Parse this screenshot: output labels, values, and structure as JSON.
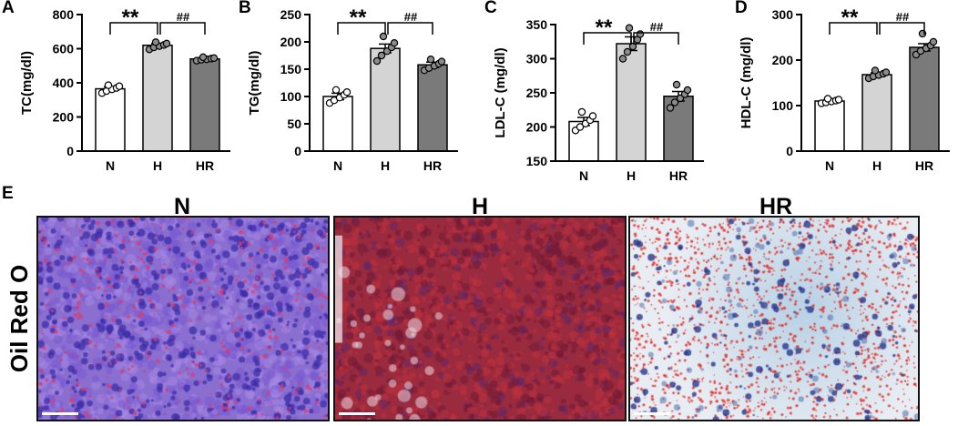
{
  "chart_data": [
    {
      "panel": "A",
      "type": "bar",
      "categories": [
        "N",
        "H",
        "HR"
      ],
      "values": [
        365,
        620,
        540
      ],
      "errors": [
        12,
        10,
        6
      ],
      "points": [
        [
          340,
          352,
          362,
          370,
          380,
          386
        ],
        [
          596,
          608,
          615,
          622,
          630,
          638
        ],
        [
          530,
          535,
          538,
          542,
          545,
          550
        ]
      ],
      "bar_colors": [
        "#ffffff",
        "#d4d4d4",
        "#7a7a7a"
      ],
      "ylabel": "TC(mg/dl)",
      "ylim": [
        0,
        800
      ],
      "yticks": [
        0,
        200,
        400,
        600,
        800
      ],
      "sig": [
        {
          "text": "**",
          "from": 0,
          "to": 1
        },
        {
          "text": "##",
          "from": 1,
          "to": 2
        }
      ]
    },
    {
      "panel": "B",
      "type": "bar",
      "categories": [
        "N",
        "H",
        "HR"
      ],
      "values": [
        100,
        188,
        158
      ],
      "errors": [
        6,
        8,
        5
      ],
      "points": [
        [
          88,
          93,
          98,
          103,
          108,
          112
        ],
        [
          165,
          175,
          183,
          190,
          198,
          210
        ],
        [
          148,
          152,
          156,
          160,
          164,
          168
        ]
      ],
      "bar_colors": [
        "#ffffff",
        "#d4d4d4",
        "#7a7a7a"
      ],
      "ylabel": "TG(mg/dl)",
      "ylim": [
        0,
        250
      ],
      "yticks": [
        0,
        50,
        100,
        150,
        200,
        250
      ],
      "sig": [
        {
          "text": "**",
          "from": 0,
          "to": 1
        },
        {
          "text": "##",
          "from": 1,
          "to": 2
        }
      ]
    },
    {
      "panel": "C",
      "type": "bar",
      "categories": [
        "N",
        "H",
        "HR"
      ],
      "values": [
        208,
        322,
        245
      ],
      "errors": [
        6,
        10,
        7
      ],
      "points": [
        [
          195,
          200,
          205,
          210,
          216,
          222
        ],
        [
          300,
          310,
          318,
          328,
          336,
          345
        ],
        [
          228,
          236,
          242,
          248,
          254,
          262
        ]
      ],
      "bar_colors": [
        "#ffffff",
        "#d4d4d4",
        "#7a7a7a"
      ],
      "ylabel": "LDL-C (mg/dl)",
      "ylim": [
        150,
        350
      ],
      "yticks": [
        150,
        200,
        250,
        300,
        350
      ],
      "sig": [
        {
          "text": "**",
          "from": 0,
          "to": 1
        },
        {
          "text": "##",
          "from": 1,
          "to": 2
        }
      ]
    },
    {
      "panel": "D",
      "type": "bar",
      "categories": [
        "N",
        "H",
        "HR"
      ],
      "values": [
        110,
        168,
        228
      ],
      "errors": [
        3,
        4,
        8
      ],
      "points": [
        [
          105,
          107,
          109,
          111,
          113,
          115
        ],
        [
          160,
          164,
          167,
          170,
          173,
          177
        ],
        [
          212,
          220,
          226,
          232,
          240,
          258
        ]
      ],
      "bar_colors": [
        "#ffffff",
        "#d4d4d4",
        "#7a7a7a"
      ],
      "ylabel": "HDL-C (mg/dl)",
      "ylim": [
        0,
        300
      ],
      "yticks": [
        0,
        100,
        200,
        300
      ],
      "sig": [
        {
          "text": "**",
          "from": 0,
          "to": 1
        },
        {
          "text": "##",
          "from": 1,
          "to": 2
        }
      ]
    }
  ],
  "panel_e": {
    "letter": "E",
    "stain_label": "Oil Red O",
    "images": [
      {
        "title": "N",
        "style": "purple-nuclei",
        "base": "#8a6fd0",
        "dark": "#4a3ab4",
        "accent": "#d8407a"
      },
      {
        "title": "H",
        "style": "red-lipid",
        "base": "#9a2a3e",
        "dark": "#6a1a40",
        "accent": "#c03a3a"
      },
      {
        "title": "HR",
        "style": "light-dots",
        "base": "#e8edf3",
        "dark": "#2c3a8c",
        "accent": "#e0302a"
      }
    ]
  },
  "colors": {
    "axis": "#000000",
    "light_bar": "#d4d4d4",
    "dark_bar": "#7a7a7a",
    "point_fill": "#8c8c8c"
  }
}
